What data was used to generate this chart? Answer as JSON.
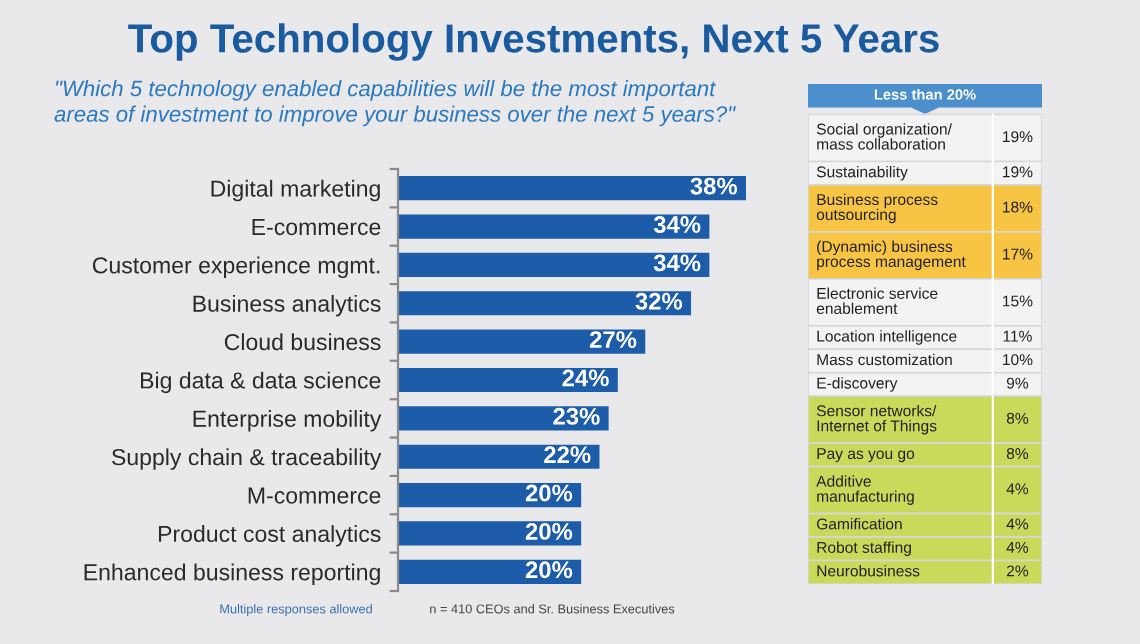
{
  "chart_data": [
    {
      "type": "bar",
      "orientation": "horizontal",
      "title": "Top Technology Investments, Next 5 Years",
      "subtitle": "\"Which 5 technology enabled capabilities will be the most important\nareas of investment to improve your business over the next 5 years?\"",
      "categories": [
        "Digital marketing",
        "E-commerce",
        "Customer experience mgmt.",
        "Business analytics",
        "Cloud business",
        "Big data & data science",
        "Enterprise mobility",
        "Supply chain & traceability",
        "M-commerce",
        "Product cost analytics",
        "Enhanced business reporting"
      ],
      "values": [
        38,
        34,
        34,
        32,
        27,
        24,
        23,
        22,
        20,
        20,
        20
      ],
      "color": "#1c5ca8",
      "value_labels": [
        "38%",
        "34%",
        "34%",
        "32%",
        "27%",
        "24%",
        "23%",
        "22%",
        "20%",
        "20%",
        "20%"
      ],
      "tick_labels": "y",
      "annotations": [
        "Multiple responses allowed",
        "n = 410 CEOs and Sr. Business Executives"
      ]
    },
    {
      "type": "other",
      "title": "Less than 20%",
      "categories": [
        "Social organization/\nmass collaboration",
        "Sustainability",
        "Business process\noutsourcing",
        "(Dynamic) business\nprocess management",
        "Electronic service\nenablement",
        "Location intelligence",
        "Mass customization",
        "E-discovery",
        "Sensor networks/\nInternet of Things",
        "Pay as you go",
        "Additive\nmanufacturing",
        "Gamification",
        "Robot staffing",
        "Neurobusiness"
      ],
      "values": [
        19,
        19,
        18,
        17,
        15,
        11,
        10,
        9,
        8,
        8,
        4,
        4,
        4,
        2
      ],
      "value_labels": [
        "19%",
        "19%",
        "18%",
        "17%",
        "15%",
        "11%",
        "10%",
        "9%",
        "8%",
        "8%",
        "4%",
        "4%",
        "4%",
        "2%"
      ],
      "colors": [
        "#f3f3f4",
        "#f3f3f4",
        "#f8c444",
        "#f8c444",
        "#f3f3f4",
        "#f3f3f4",
        "#f3f3f4",
        "#f3f3f4",
        "#c9da5a",
        "#c9da5a",
        "#c9da5a",
        "#c9da5a",
        "#c9da5a",
        "#c9da5a"
      ]
    }
  ]
}
